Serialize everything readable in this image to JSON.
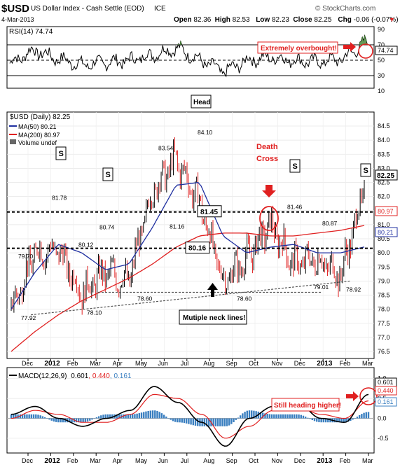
{
  "header": {
    "symbol": "$USD",
    "name": "US Dollar Index - Cash Settle (EOD)",
    "exchange": "ICE",
    "date": "4-Mar-2013",
    "watermark": "© StockCharts.com",
    "ohlc": [
      {
        "label": "Open",
        "value": "82.36"
      },
      {
        "label": "High",
        "value": "82.53"
      },
      {
        "label": "Low",
        "value": "82.23"
      },
      {
        "label": "Close",
        "value": "82.25"
      },
      {
        "label": "Chg",
        "value": "-0.06 (-0.07%)"
      }
    ],
    "change_arrow": "▼"
  },
  "rsi_panel": {
    "label": "RSI(14) 74.74",
    "last_value": "74.74",
    "ticks": [
      "90",
      "70",
      "50",
      "30",
      "10"
    ],
    "annotation": "Extremely overbought!"
  },
  "price_panel": {
    "legend": {
      "title": "$USD (Daily) 82.25",
      "ma50": "MA(50) 80.21",
      "ma200": "MA(200) 80.97",
      "volume": "Volume undef"
    },
    "badges": {
      "close": "82.25",
      "ma200": "80.97",
      "ma50": "80.21"
    },
    "ticks": [
      "84.5",
      "84.0",
      "83.5",
      "83.0",
      "82.5",
      "82.0",
      "81.5",
      "81.0",
      "80.5",
      "80.0",
      "79.5",
      "79.0",
      "78.5",
      "78.0",
      "77.5",
      "77.0",
      "76.5"
    ],
    "peak_labels": [
      "77.92",
      "79.70",
      "81.78",
      "80.12",
      "78.10",
      "80.74",
      "78.60",
      "83.54",
      "81.16",
      "84.10",
      "78.60",
      "81.46",
      "80.87",
      "79.01",
      "78.92"
    ],
    "levels": [
      "81.45",
      "80.16"
    ],
    "annotations": {
      "head": "Head",
      "shoulder": "S",
      "death_cross": "Death Cross",
      "neck_lines": "Mutiple neck lines!"
    }
  },
  "macd_panel": {
    "label_prefix": "MACD(12,26,9)",
    "macd": "0.601",
    "signal": "0.440",
    "hist": "0.161",
    "badges": [
      "0.601",
      "0.440",
      "0.161"
    ],
    "ticks": [
      "1.0",
      "0.5",
      "0.0",
      "-0.5"
    ],
    "annotation": "Still heading higher!"
  },
  "x_axis": [
    "Dec",
    "2012",
    "Feb",
    "Mar",
    "Apr",
    "May",
    "Jun",
    "Jul",
    "Aug",
    "Sep",
    "Oct",
    "Nov",
    "Dec",
    "2013",
    "Feb",
    "Mar"
  ],
  "colors": {
    "up_bar": "#000000",
    "down_bar": "#e02020",
    "ma50": "#1f2fa0",
    "ma200": "#e02020",
    "signal": "#e02020",
    "histogram": "#3a7fc0",
    "annotation": "#e02020",
    "rsi_fill": "#4a8a3a"
  },
  "chart_data": [
    {
      "type": "line",
      "title": "RSI(14)",
      "x": [
        "Dec",
        "2012",
        "Feb",
        "Mar",
        "Apr",
        "May",
        "Jun",
        "Jul",
        "Aug",
        "Sep",
        "Oct",
        "Nov",
        "Dec",
        "2013",
        "Feb",
        "Mar"
      ],
      "series": [
        {
          "name": "RSI(14)",
          "values": [
            46,
            63,
            52,
            44,
            47,
            50,
            57,
            66,
            50,
            35,
            50,
            54,
            49,
            48,
            52,
            75
          ]
        }
      ],
      "ylim": [
        10,
        90
      ]
    },
    {
      "type": "line",
      "title": "$USD (Daily) 82.25",
      "x": [
        "Dec",
        "2012",
        "Feb",
        "Mar",
        "Apr",
        "May",
        "Jun",
        "Jul",
        "Aug",
        "Sep",
        "Oct",
        "Nov",
        "Dec",
        "2013",
        "Feb",
        "Mar"
      ],
      "series": [
        {
          "name": "$USD",
          "values": [
            78.0,
            80.0,
            80.1,
            78.6,
            79.3,
            79.0,
            82.2,
            83.3,
            81.8,
            79.0,
            79.8,
            81.0,
            79.6,
            79.8,
            79.2,
            82.25
          ]
        },
        {
          "name": "MA(50)",
          "values": [
            78.0,
            79.3,
            80.3,
            80.0,
            79.4,
            79.6,
            80.9,
            82.4,
            82.5,
            80.6,
            80.0,
            80.2,
            80.3,
            80.0,
            80.0,
            80.21
          ]
        },
        {
          "name": "MA(200)",
          "values": [
            76.5,
            77.2,
            77.8,
            78.3,
            78.7,
            79.1,
            79.6,
            80.2,
            80.6,
            80.7,
            80.7,
            80.6,
            80.6,
            80.7,
            80.8,
            80.97
          ]
        }
      ],
      "ylim": [
        76.5,
        84.5
      ]
    },
    {
      "type": "line",
      "title": "MACD(12,26,9)",
      "x": [
        "Dec",
        "2012",
        "Feb",
        "Mar",
        "Apr",
        "May",
        "Jun",
        "Jul",
        "Aug",
        "Sep",
        "Oct",
        "Nov",
        "Dec",
        "2013",
        "Feb",
        "Mar"
      ],
      "series": [
        {
          "name": "MACD",
          "values": [
            0.1,
            0.3,
            0.0,
            -0.2,
            0.0,
            0.2,
            0.8,
            0.4,
            -0.1,
            -0.7,
            0.0,
            0.3,
            0.4,
            0.0,
            -0.1,
            0.601
          ]
        },
        {
          "name": "Signal",
          "values": [
            0.0,
            0.2,
            0.1,
            -0.1,
            -0.1,
            0.1,
            0.6,
            0.5,
            0.1,
            -0.5,
            -0.2,
            0.2,
            0.3,
            0.1,
            0.0,
            0.44
          ]
        },
        {
          "name": "Histogram",
          "values": [
            0.1,
            0.1,
            -0.1,
            -0.1,
            0.1,
            0.1,
            0.2,
            -0.1,
            -0.2,
            -0.2,
            0.2,
            0.1,
            0.1,
            -0.1,
            -0.1,
            0.161
          ]
        }
      ],
      "ylim": [
        -0.8,
        1.1
      ]
    }
  ]
}
